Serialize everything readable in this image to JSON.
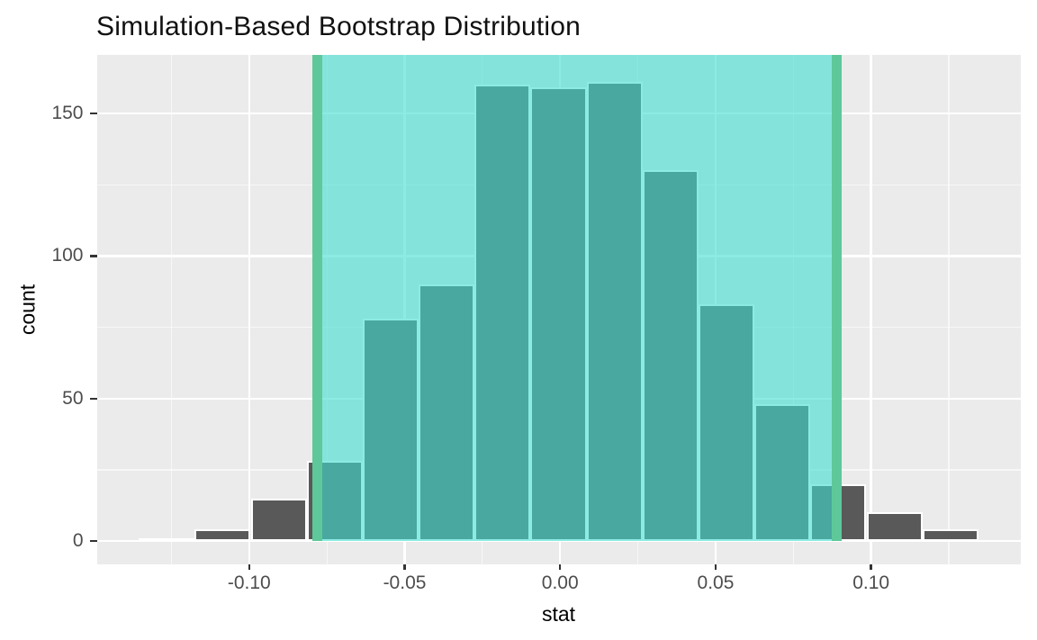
{
  "title": "Simulation-Based Bootstrap Distribution",
  "chart_data": {
    "type": "bar",
    "subtype": "histogram",
    "title": "Simulation-Based Bootstrap Distribution",
    "xlabel": "stat",
    "ylabel": "count",
    "bin_start": -0.1355,
    "bin_width": 0.018,
    "counts": [
      1,
      4,
      15,
      28,
      78,
      90,
      160,
      159,
      161,
      130,
      83,
      48,
      20,
      10,
      4
    ],
    "bin_centers": [
      -0.1265,
      -0.1085,
      -0.0905,
      -0.0725,
      -0.0545,
      -0.0365,
      -0.0185,
      -0.0005,
      0.0175,
      0.0355,
      0.0535,
      0.0715,
      0.0895,
      0.1075,
      0.1255
    ],
    "confidence_interval": {
      "lower": -0.078,
      "upper": 0.089
    },
    "x_major_ticks": [
      -0.1,
      -0.05,
      0.0,
      0.05,
      0.1
    ],
    "x_tick_labels": [
      "-0.10",
      "-0.05",
      "0.00",
      "0.05",
      "0.10"
    ],
    "x_minor_ticks": [
      -0.125,
      -0.075,
      -0.025,
      0.025,
      0.075,
      0.125
    ],
    "y_major_ticks": [
      0,
      50,
      100,
      150
    ],
    "y_tick_labels": [
      "0",
      "50",
      "100",
      "150"
    ],
    "y_minor_ticks": [
      25,
      75,
      125
    ],
    "xlim": [
      -0.149,
      0.148
    ],
    "ylim": [
      -8,
      170.5
    ],
    "grid": true,
    "legend": false,
    "colors": {
      "bar_fill": "#595959",
      "bar_border": "#FFFFFF",
      "panel_background": "#EBEBEB",
      "gridline": "#FFFFFF",
      "shade_fill": "#40E0D0",
      "shade_alpha": 0.6,
      "ci_line": "#5EC89A",
      "axis_text": "#4D4D4D",
      "title_text": "#111111"
    }
  }
}
